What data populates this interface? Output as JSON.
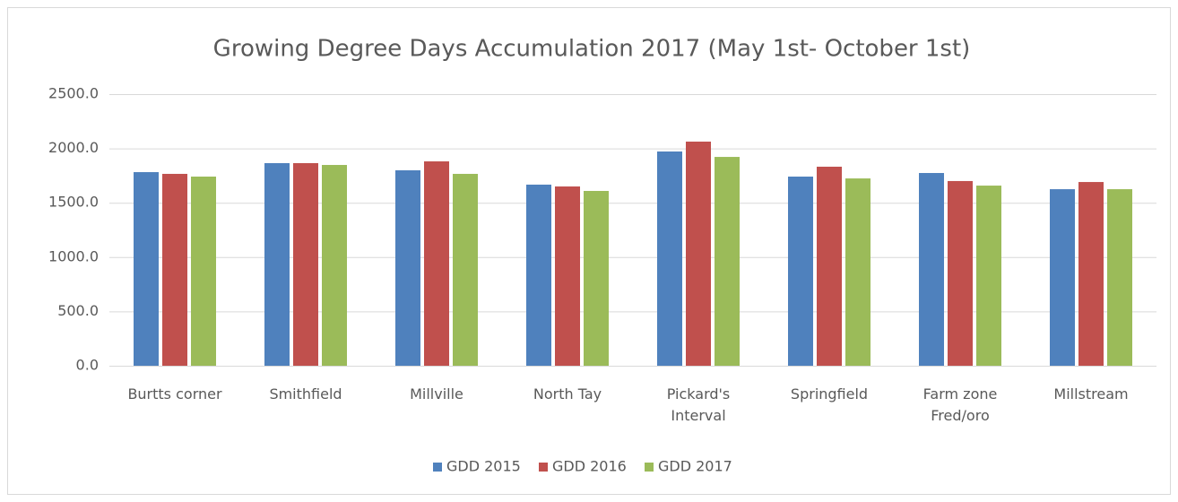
{
  "chart_data": {
    "type": "bar",
    "title": "Growing Degree Days Accumulation 2017 (May 1st- October 1st)",
    "categories": [
      "Burtts corner",
      "Smithfield",
      "Millville",
      "North Tay",
      "Pickard's\nInterval",
      "Springfield",
      "Farm zone\nFred/oro",
      "Millstream"
    ],
    "series": [
      {
        "name": "GDD 2015",
        "color": "#4f81bd",
        "values": [
          1782,
          1865,
          1799,
          1667,
          1972,
          1741,
          1774,
          1625
        ]
      },
      {
        "name": "GDD 2016",
        "color": "#c0504d",
        "values": [
          1766,
          1865,
          1881,
          1650,
          2063,
          1832,
          1700,
          1691
        ]
      },
      {
        "name": "GDD 2017",
        "color": "#9bbb59",
        "values": [
          1741,
          1848,
          1766,
          1609,
          1922,
          1724,
          1658,
          1625
        ]
      }
    ],
    "ylim": [
      0,
      2500
    ],
    "yticks": [
      {
        "value": 0,
        "label": "0.0"
      },
      {
        "value": 500,
        "label": "500.0"
      },
      {
        "value": 1000,
        "label": "1000.0"
      },
      {
        "value": 1500,
        "label": "1500.0"
      },
      {
        "value": 2000,
        "label": "2000.0"
      },
      {
        "value": 2500,
        "label": "2500.0"
      }
    ],
    "grid": true,
    "legend": "bottom"
  }
}
